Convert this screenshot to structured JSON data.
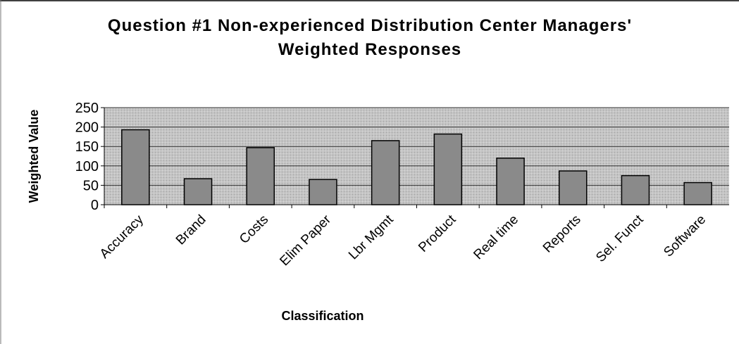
{
  "chart_data": {
    "type": "bar",
    "title": "Question #1 Non-experienced Distribution Center Managers' Weighted Responses",
    "x_label": "Classification",
    "y_label": "Weighted Value",
    "categories": [
      "Accuracy",
      "Brand",
      "Costs",
      "Elim Paper",
      "Lbr Mgmt",
      "Product",
      "Real time",
      "Reports",
      "Sel. Funct",
      "Software"
    ],
    "values": [
      193,
      67,
      147,
      65,
      165,
      182,
      120,
      87,
      75,
      57
    ],
    "color": "#8a8a8a",
    "ylim": [
      0,
      250
    ],
    "yticks": [
      0,
      50,
      100,
      150,
      200,
      250
    ],
    "grid": true
  }
}
